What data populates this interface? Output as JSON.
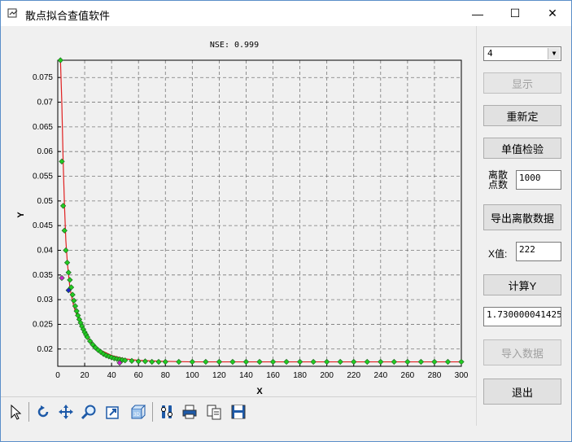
{
  "window": {
    "title": "散点拟合查值软件",
    "minimize_glyph": "—",
    "maximize_glyph": "☐",
    "close_glyph": "✕"
  },
  "plot": {
    "nse_label": "NSE: 0.999",
    "xlabel": "X",
    "ylabel": "Y",
    "x_ticks": [
      "0",
      "20",
      "40",
      "60",
      "80",
      "100",
      "120",
      "140",
      "160",
      "180",
      "200",
      "220",
      "240",
      "260",
      "280",
      "300"
    ],
    "y_ticks": [
      "0.02",
      "0.025",
      "0.03",
      "0.035",
      "0.04",
      "0.045",
      "0.05",
      "0.055",
      "0.06",
      "0.065",
      "0.07",
      "0.075"
    ]
  },
  "chart_data": {
    "type": "scatter",
    "title": "NSE: 0.999",
    "xlabel": "X",
    "ylabel": "Y",
    "xlim": [
      0,
      300
    ],
    "ylim": [
      0.0165,
      0.0785
    ],
    "grid": true,
    "series": [
      {
        "style": "line",
        "color": "#e02020",
        "x": [
          2,
          3,
          4,
          5,
          6,
          7,
          8,
          9,
          10,
          12,
          14,
          16,
          18,
          20,
          25,
          30,
          40,
          50,
          60,
          80,
          100,
          150,
          200,
          250,
          300
        ],
        "y": [
          0.0785,
          0.07,
          0.058,
          0.049,
          0.042,
          0.038,
          0.035,
          0.0325,
          0.031,
          0.0285,
          0.027,
          0.0255,
          0.0243,
          0.0232,
          0.0213,
          0.02,
          0.0187,
          0.018,
          0.0177,
          0.0175,
          0.0174,
          0.0174,
          0.0174,
          0.0174,
          0.0174
        ]
      },
      {
        "style": "markers",
        "color": "#22cc22",
        "x": [
          2,
          3,
          4,
          5,
          6,
          7,
          8,
          9,
          10,
          11,
          12,
          13,
          14,
          15,
          16,
          17,
          18,
          19,
          20,
          21,
          22,
          24,
          26,
          28,
          30,
          32,
          34,
          36,
          38,
          40,
          42,
          44,
          46,
          48,
          50,
          55,
          60,
          65,
          70,
          75,
          80,
          90,
          100,
          110,
          120,
          130,
          140,
          150,
          160,
          170,
          180,
          190,
          200,
          210,
          220,
          230,
          240,
          250,
          260,
          270,
          280,
          290,
          300
        ],
        "y": [
          0.0785,
          0.058,
          0.049,
          0.044,
          0.04,
          0.0375,
          0.0355,
          0.034,
          0.0325,
          0.031,
          0.0298,
          0.0287,
          0.0277,
          0.0268,
          0.026,
          0.0253,
          0.0246,
          0.024,
          0.0234,
          0.0229,
          0.0224,
          0.0216,
          0.0209,
          0.0203,
          0.0198,
          0.0194,
          0.019,
          0.0187,
          0.0185,
          0.0183,
          0.0181,
          0.018,
          0.0179,
          0.0178,
          0.0177,
          0.0176,
          0.0175,
          0.0175,
          0.0174,
          0.0174,
          0.0174,
          0.0174,
          0.0174,
          0.0174,
          0.0174,
          0.0174,
          0.0174,
          0.0174,
          0.0174,
          0.0174,
          0.0174,
          0.0174,
          0.0174,
          0.0174,
          0.0174,
          0.0174,
          0.0174,
          0.0174,
          0.0174,
          0.0174,
          0.0174,
          0.0174,
          0.0174
        ]
      },
      {
        "style": "markers",
        "color": "#cc22cc",
        "x": [
          3,
          46
        ],
        "y": [
          0.0344,
          0.0172
        ]
      },
      {
        "style": "markers",
        "color": "#2222cc",
        "x": [
          8
        ],
        "y": [
          0.0319
        ]
      }
    ]
  },
  "toolbar": {
    "icons": [
      "pointer-icon",
      "rotate-icon",
      "pan-icon",
      "zoom-icon",
      "export-image-icon",
      "3d-view-icon",
      "settings-icon",
      "print-icon",
      "copy-icon",
      "save-icon"
    ]
  },
  "panel": {
    "select_value": "4",
    "show_button": "显示",
    "reset_button": "重新定",
    "single_check_button": "单值检验",
    "discrete_label_1": "离散",
    "discrete_label_2": "点数",
    "discrete_value": "1000",
    "export_button": "导出离散数据",
    "x_label": "X值:",
    "x_value": "222",
    "calc_button": "计算Y",
    "result_value": "1.730000041425",
    "import_button": "导入数据",
    "exit_button": "退出"
  }
}
